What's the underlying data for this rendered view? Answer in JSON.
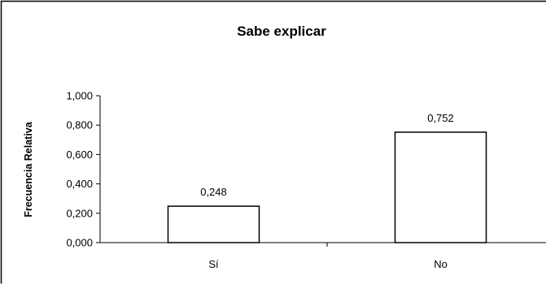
{
  "chart_data": {
    "type": "bar",
    "title": "Sabe explicar",
    "xlabel": "",
    "ylabel": "Frecuencia Relativa",
    "categories": [
      "Sí",
      "No"
    ],
    "values": [
      0.248,
      0.752
    ],
    "data_labels": [
      "0,248",
      "0,752"
    ],
    "ylim": [
      0,
      1
    ],
    "yticks": [
      0,
      0.2,
      0.4,
      0.6,
      0.8,
      1.0
    ],
    "ytick_labels": [
      "0,000",
      "0,200",
      "0,400",
      "0,600",
      "0,800",
      "1,000"
    ],
    "grid": false,
    "legend": "none",
    "colors": {
      "bar_fill": "#ffffff",
      "bar_stroke": "#000000",
      "axis": "#000000",
      "frame": "#000000",
      "background": "#ffffff"
    }
  }
}
